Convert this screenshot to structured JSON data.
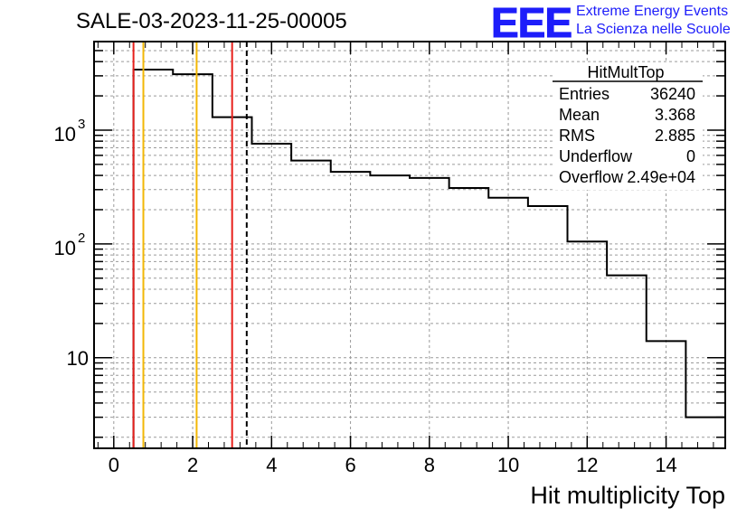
{
  "header": {
    "title": "SALE-03-2023-11-25-00005",
    "logo_text": "EEE",
    "logo_line1": "Extreme Energy Events",
    "logo_line2": "La Scienza nelle Scuole"
  },
  "stats": {
    "name": "HitMultTop",
    "rows": [
      {
        "label": "Entries",
        "value": "36240"
      },
      {
        "label": "Mean",
        "value": "3.368"
      },
      {
        "label": "RMS",
        "value": "2.885"
      },
      {
        "label": "Underflow",
        "value": "0"
      },
      {
        "label": "Overflow",
        "value": "2.49e+04"
      }
    ]
  },
  "chart_data": {
    "type": "histogram",
    "title": "SALE-03-2023-11-25-00005",
    "xlabel": "Hit multiplicity Top",
    "ylabel": "",
    "y_scale": "log",
    "xlim": [
      -0.5,
      15.5
    ],
    "ylim": [
      1.6,
      6000
    ],
    "grid": true,
    "x_ticks": [
      0,
      2,
      4,
      6,
      8,
      10,
      12,
      14
    ],
    "x_tick_labels": [
      "0",
      "2",
      "4",
      "6",
      "8",
      "10",
      "12",
      "14"
    ],
    "y_ticks": [
      10,
      100,
      1000
    ],
    "y_tick_labels": [
      {
        "base": "10",
        "exp": ""
      },
      {
        "base": "10",
        "exp": "2"
      },
      {
        "base": "10",
        "exp": "3"
      }
    ],
    "bin_edges": [
      0.5,
      1.5,
      2.5,
      3.5,
      4.5,
      5.5,
      6.5,
      7.5,
      8.5,
      9.5,
      10.5,
      11.5,
      12.5,
      13.5,
      14.5,
      15.5
    ],
    "counts": [
      3400,
      3100,
      1300,
      760,
      540,
      430,
      400,
      380,
      310,
      255,
      215,
      105,
      53,
      14,
      3
    ],
    "vertical_lines": [
      {
        "x": 0.5,
        "color": "#e8201c",
        "style": "solid"
      },
      {
        "x": 0.75,
        "color": "#f2b705",
        "style": "solid"
      },
      {
        "x": 2.1,
        "color": "#f2b705",
        "style": "solid"
      },
      {
        "x": 3.0,
        "color": "#e8201c",
        "style": "solid"
      },
      {
        "x": 3.37,
        "color": "#000000",
        "style": "dashed"
      }
    ]
  }
}
